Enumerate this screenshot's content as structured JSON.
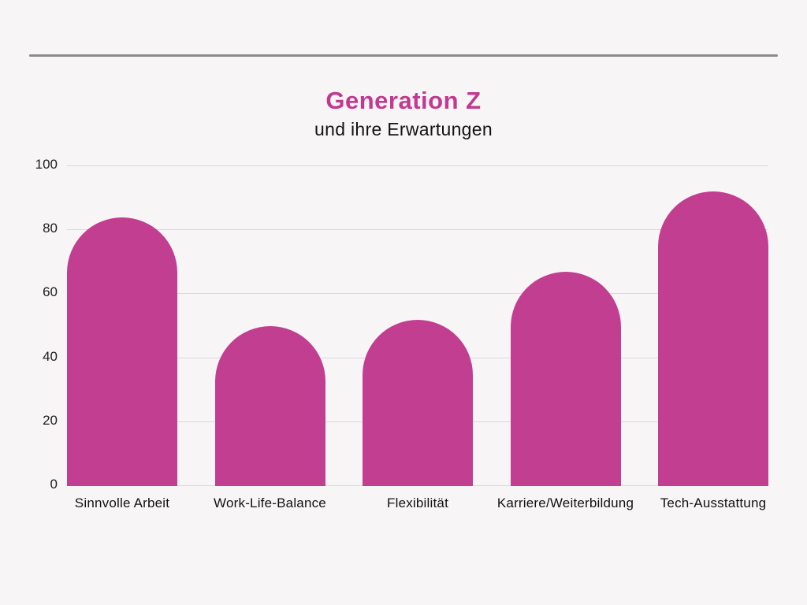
{
  "page": {
    "background_color": "#F7F5F6",
    "top_rule_color": "#8c8b8c"
  },
  "header": {
    "title": "Generation Z",
    "subtitle": "und ihre Erwartungen",
    "title_color": "#C2398F",
    "subtitle_color": "#151215"
  },
  "chart_data": {
    "type": "bar",
    "title": "Generation Z",
    "subtitle": "und ihre Erwartungen",
    "categories": [
      "Sinnvolle Arbeit",
      "Work-Life-Balance",
      "Flexibilität",
      "Karriere/Weiterbildung",
      "Tech-Ausstattung"
    ],
    "values": [
      84,
      50,
      52,
      67,
      92
    ],
    "xlabel": "",
    "ylabel": "",
    "ylim": [
      0,
      100
    ],
    "yticks": [
      0,
      20,
      40,
      60,
      80,
      100
    ],
    "bar_color": "#C23E90",
    "bar_style": "rounded-top",
    "grid": true,
    "gridline_color": "#dcd8da",
    "legend_position": "none"
  }
}
